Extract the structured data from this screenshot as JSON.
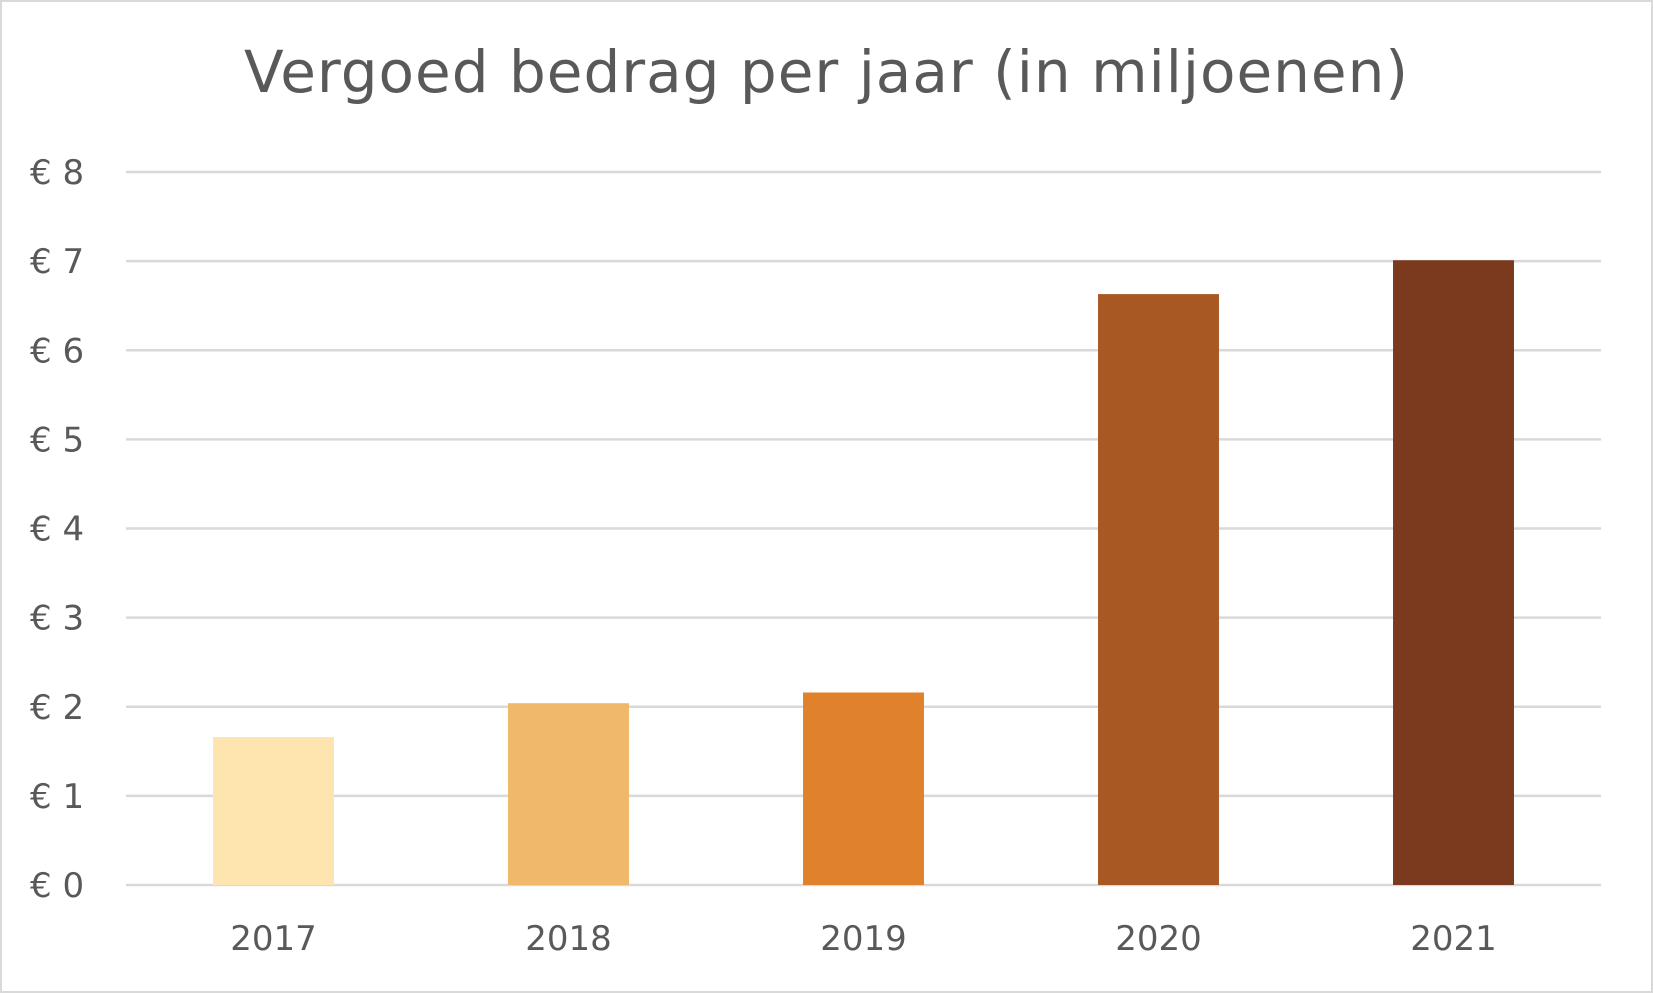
{
  "chart_data": {
    "type": "bar",
    "title": "Vergoed bedrag per jaar (in miljoenen)",
    "xlabel": "",
    "ylabel": "",
    "categories": [
      "2017",
      "2018",
      "2019",
      "2020",
      "2021"
    ],
    "values": [
      1.66,
      2.04,
      2.16,
      6.63,
      7.01
    ],
    "colors": [
      "#FEE5B0",
      "#F0B86B",
      "#E0812B",
      "#A85823",
      "#7B391E"
    ],
    "ylim": [
      0,
      8
    ],
    "yticks": [
      0,
      1,
      2,
      3,
      4,
      5,
      6,
      7,
      8
    ],
    "ytick_labels": [
      "€ 0",
      "€ 1",
      "€ 2",
      "€ 3",
      "€ 4",
      "€ 5",
      "€ 6",
      "€ 7",
      "€ 8"
    ],
    "grid": true,
    "legend": "none"
  }
}
